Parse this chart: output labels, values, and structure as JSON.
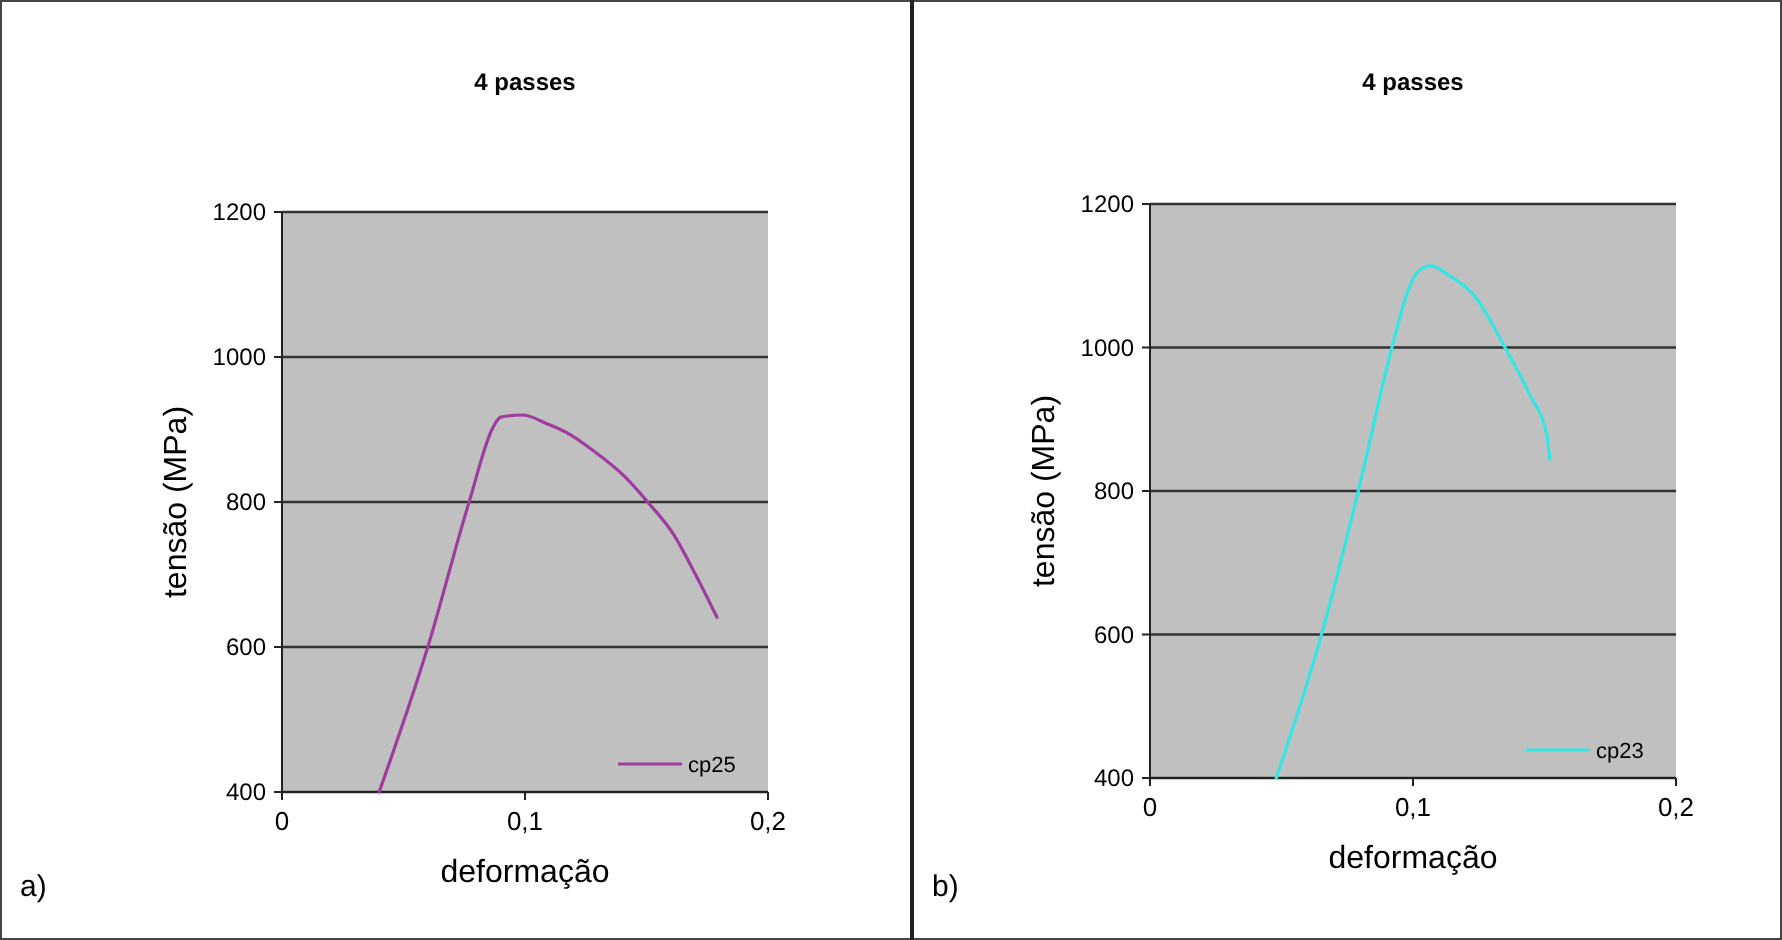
{
  "chart_data": [
    {
      "type": "line",
      "title": "4 passes",
      "xlabel": "deformação",
      "ylabel": "tensão (MPa)",
      "annotations": [
        "a)"
      ],
      "xlim": [
        0,
        0.2
      ],
      "xticks": [
        {
          "value": 0,
          "label": "0"
        },
        {
          "value": 0.1,
          "label": "0,1"
        },
        {
          "value": 0.2,
          "label": "0,2"
        }
      ],
      "ylim": [
        400,
        1200
      ],
      "yticks": [
        400,
        600,
        800,
        1000,
        1200
      ],
      "grid": "y",
      "legend": "bottom right",
      "series": [
        {
          "name": "cp25",
          "color": "#a03ca0",
          "x": [
            0.04,
            0.06,
            0.077,
            0.087,
            0.09,
            0.099,
            0.109,
            0.117,
            0.128,
            0.142,
            0.151,
            0.161,
            0.17,
            0.179
          ],
          "values": [
            400,
            600,
            800,
            904,
            917,
            920,
            908,
            896,
            871,
            832,
            798,
            756,
            701,
            641
          ]
        }
      ]
    },
    {
      "type": "line",
      "title": "4 passes",
      "xlabel": "deformação",
      "ylabel": "tensão (MPa)",
      "annotations": [
        "b)"
      ],
      "xlim": [
        0,
        0.2
      ],
      "xticks": [
        {
          "value": 0,
          "label": "0"
        },
        {
          "value": 0.1,
          "label": "0,1"
        },
        {
          "value": 0.2,
          "label": "0,2"
        }
      ],
      "ylim": [
        400,
        1200
      ],
      "yticks": [
        400,
        600,
        800,
        1000,
        1200
      ],
      "grid": "y",
      "legend": "bottom right",
      "series": [
        {
          "name": "cp23",
          "color": "#33e6e6",
          "x": [
            0.048,
            0.065,
            0.079,
            0.092,
            0.098,
            0.102,
            0.107,
            0.113,
            0.124,
            0.135,
            0.144,
            0.151,
            0.152
          ],
          "values": [
            400,
            597,
            797,
            1000,
            1078,
            1106,
            1114,
            1102,
            1069,
            1000,
            937,
            876,
            844
          ]
        }
      ]
    }
  ]
}
